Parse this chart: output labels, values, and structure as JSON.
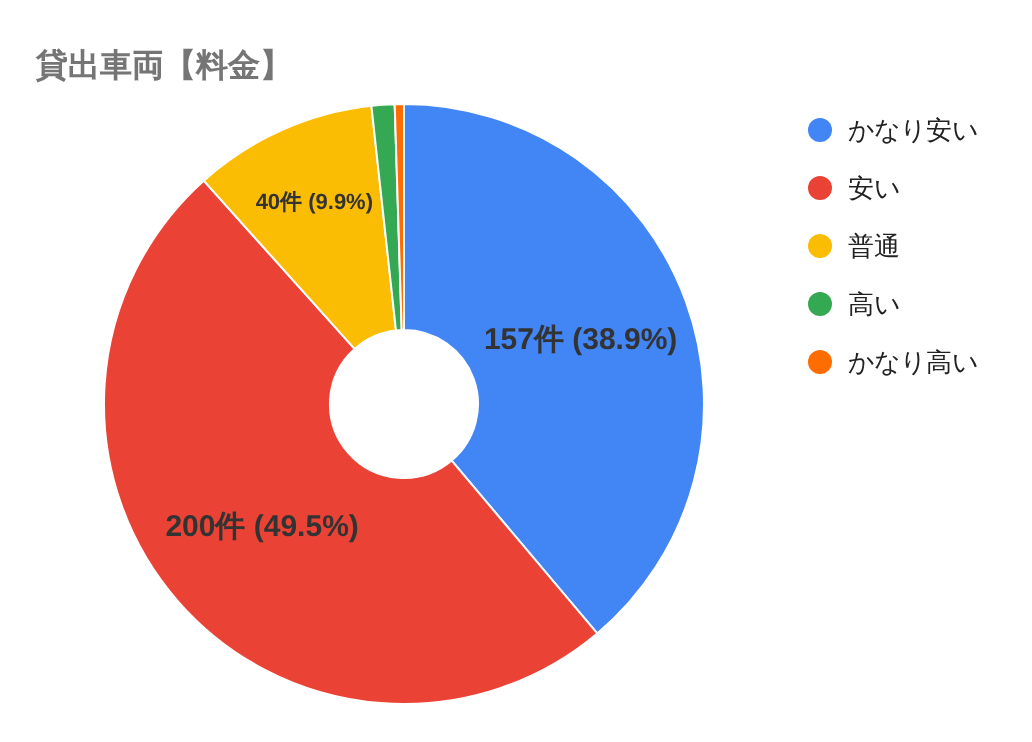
{
  "chart_data": {
    "type": "donut",
    "title": "貸出車両【料金】",
    "categories": [
      "かなり安い",
      "安い",
      "普通",
      "高い",
      "かなり高い"
    ],
    "values": [
      157,
      200,
      40,
      5,
      2
    ],
    "colors": [
      "#4285f4",
      "#ea4335",
      "#fbbc04",
      "#34a853",
      "#ff6d01"
    ],
    "value_labels": [
      "157件 (38.9%)",
      "200件 (49.5%)",
      "40件 (9.9%)",
      null,
      null
    ],
    "legend": "right"
  }
}
